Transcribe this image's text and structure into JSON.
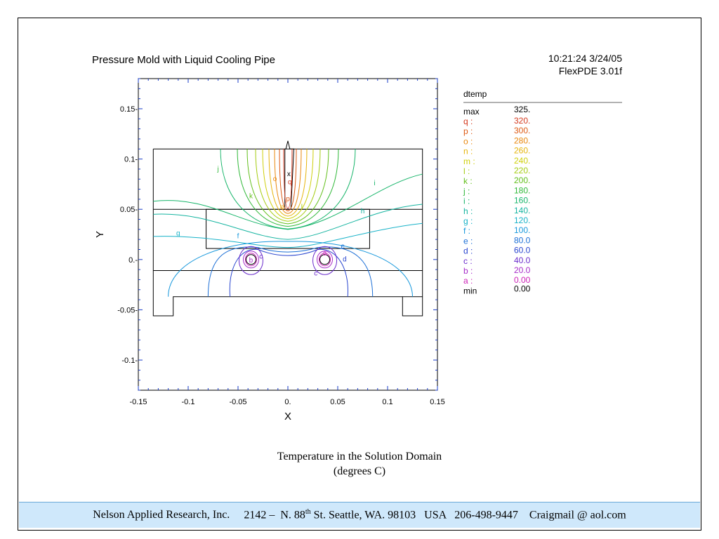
{
  "header": {
    "title": "Pressure Mold with Liquid Cooling Pipe",
    "timestamp": "10:21:24 3/24/05",
    "software": "FlexPDE 3.01f"
  },
  "caption": {
    "line1": "Temperature in the Solution Domain",
    "line2": "(degrees C)"
  },
  "footer": {
    "company": "Nelson Applied Research, Inc.",
    "addr_pre": "2142 –  N. 88",
    "addr_sup": "th",
    "addr_post": " St. Seattle, WA. 98103   USA   206-498-9447    Craigmail @ aol.com"
  },
  "chart_data": {
    "type": "contour",
    "xlabel": "X",
    "ylabel": "Y",
    "xlim": [
      -0.15,
      0.15
    ],
    "ylim": [
      -0.13,
      0.18
    ],
    "x_ticks": [
      -0.15,
      -0.1,
      -0.05,
      0.0,
      0.05,
      0.1,
      0.15
    ],
    "x_tick_labels": [
      "-0.15",
      "-0.1",
      "-0.05",
      "0.",
      "0.05",
      "0.1",
      "0.15"
    ],
    "y_ticks": [
      0.15,
      0.1,
      0.05,
      0.0,
      -0.05,
      -0.1
    ],
    "y_tick_labels": [
      "0.15-",
      "0.1-",
      "0.05-",
      "0.-",
      "-0.05-",
      "-0.1-"
    ],
    "variable": "dtemp",
    "max": {
      "label": "max",
      "value": "325."
    },
    "min": {
      "label": "min",
      "value": "0.00"
    },
    "levels": [
      {
        "key": "q",
        "label": "q :",
        "value": "320.",
        "color": "#d43a1f"
      },
      {
        "key": "p",
        "label": "p :",
        "value": "300.",
        "color": "#de5a14"
      },
      {
        "key": "o",
        "label": "o :",
        "value": "280.",
        "color": "#e9870e"
      },
      {
        "key": "n",
        "label": "n :",
        "value": "260.",
        "color": "#e6b40c"
      },
      {
        "key": "m",
        "label": "m :",
        "value": "240.",
        "color": "#cfcf0a"
      },
      {
        "key": "l",
        "label": "l :",
        "value": "220.",
        "color": "#a4cc10"
      },
      {
        "key": "k",
        "label": "k :",
        "value": "200.",
        "color": "#62bf1c"
      },
      {
        "key": "j",
        "label": "j :",
        "value": "180.",
        "color": "#2fb838"
      },
      {
        "key": "i",
        "label": "i :",
        "value": "160.",
        "color": "#17b56a"
      },
      {
        "key": "h",
        "label": "h :",
        "value": "140.",
        "color": "#14b4a0"
      },
      {
        "key": "g",
        "label": "g :",
        "value": "120.",
        "color": "#17b2c8"
      },
      {
        "key": "f",
        "label": "f :",
        "value": "100.",
        "color": "#1798dc"
      },
      {
        "key": "e",
        "label": "e :",
        "value": "80.0",
        "color": "#1c6fd6"
      },
      {
        "key": "d",
        "label": "d :",
        "value": "60.0",
        "color": "#2a46cf"
      },
      {
        "key": "c",
        "label": "c :",
        "value": "40.0",
        "color": "#6a2ccc"
      },
      {
        "key": "b",
        "label": "b :",
        "value": "20.0",
        "color": "#a62cc9"
      },
      {
        "key": "a",
        "label": "a :",
        "value": "0.00",
        "color": "#cc22b8"
      }
    ],
    "contour_labels_on_plot": [
      "j",
      "o",
      "x",
      "q",
      "k",
      "p",
      "n",
      "l",
      "i",
      "h",
      "g",
      "f",
      "e",
      "c",
      "b",
      "a",
      "d",
      "c"
    ],
    "grid": false
  }
}
